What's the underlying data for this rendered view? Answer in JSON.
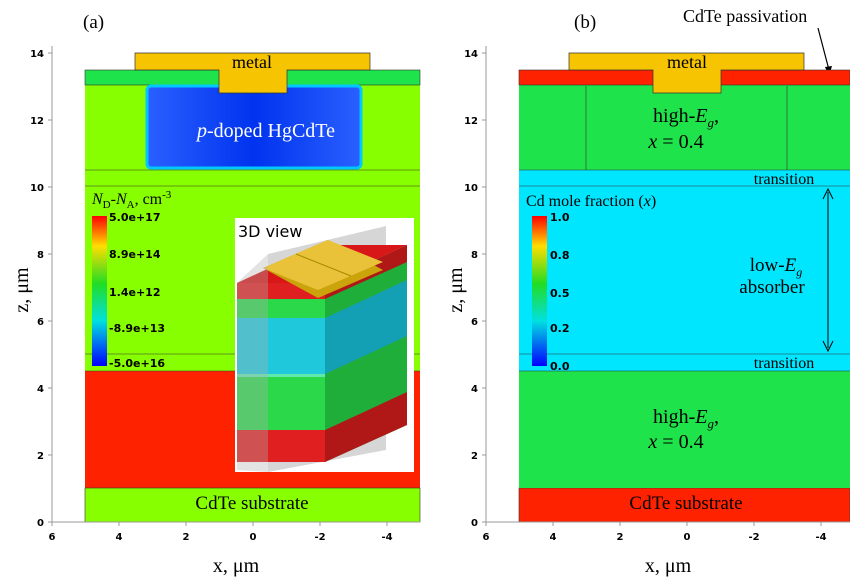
{
  "panel_a": {
    "label": "(a)",
    "axes": {
      "ylabel": "z, μm",
      "xlabel": "x, μm",
      "x_ticks": [
        "6",
        "4",
        "2",
        "0",
        "-2",
        "-4"
      ],
      "y_ticks": [
        "0",
        "2",
        "4",
        "6",
        "8",
        "10",
        "12",
        "14"
      ]
    },
    "labels": {
      "metal": "metal",
      "p_doped_prefix": "p",
      "p_doped_rest": "-doped HgCdTe",
      "substrate": "CdTe substrate",
      "view3d": "3D view"
    },
    "legend": {
      "title_n": "N",
      "title_d": "D",
      "title_minus": "-N",
      "title_a": "A",
      "title_units": ", cm",
      "title_exp": "-3",
      "ticks": [
        "5.0e+17",
        "8.9e+14",
        "1.4e+12",
        "-8.9e+13",
        "-5.0e+16"
      ]
    }
  },
  "panel_b": {
    "label": "(b)",
    "axes": {
      "ylabel": "z, μm",
      "xlabel": "x, μm",
      "x_ticks": [
        "6",
        "4",
        "2",
        "0",
        "-2",
        "-4"
      ],
      "y_ticks": [
        "0",
        "2",
        "4",
        "6",
        "8",
        "10",
        "12",
        "14"
      ]
    },
    "labels": {
      "metal": "metal",
      "passivation": "CdTe passivation",
      "high_eg_top_1": "high-",
      "high_eg_top_e": "E",
      "high_eg_top_g": "g",
      "high_eg_top_2": ",",
      "x_eq_top_x": "x",
      "x_eq_top_val": " = 0.4",
      "transition_top": "transition",
      "transition_bottom": "transition",
      "low_eg_1": "low-",
      "low_eg_e": "E",
      "low_eg_g": "g",
      "absorber": "absorber",
      "high_eg_bot_1": "high-",
      "high_eg_bot_e": "E",
      "high_eg_bot_g": "g",
      "high_eg_bot_2": ",",
      "x_eq_bot_x": "x",
      "x_eq_bot_val": " = 0.4",
      "substrate": "CdTe substrate"
    },
    "legend": {
      "title_prefix": "Cd mole fraction (",
      "title_x": "x",
      "title_suffix": ")",
      "ticks": [
        "1.0",
        "0.8",
        "0.5",
        "0.2",
        "0.0"
      ]
    }
  },
  "colors": {
    "lime": "#88ff00",
    "green": "#1ee34a",
    "red": "#ff2200",
    "cyan": "#00e6ff",
    "blue": "#1a4dff",
    "gold": "#f6c400"
  }
}
